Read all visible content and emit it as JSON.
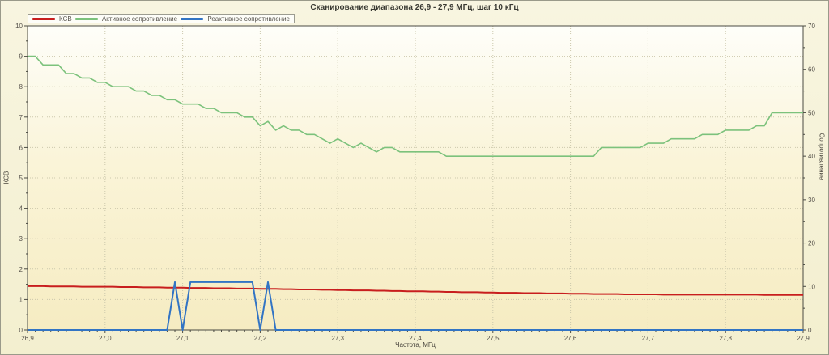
{
  "title": "Сканирование диапазона 26,9 - 27,9 МГц, шаг 10 кГц",
  "axes": {
    "x": {
      "label": "Частота, МГц",
      "min": 26.9,
      "max": 27.9,
      "major_step": 0.1,
      "minor_step": 0.01,
      "tick_labels": [
        "26,9",
        "27,0",
        "27,1",
        "27,2",
        "27,3",
        "27,4",
        "27,5",
        "27,6",
        "27,7",
        "27,8",
        "27,9"
      ]
    },
    "y_left": {
      "label": "КСВ",
      "min": 0,
      "max": 10,
      "major_step": 1,
      "minor_step": 0.5,
      "tick_labels": [
        "0",
        "1",
        "2",
        "3",
        "4",
        "5",
        "6",
        "7",
        "8",
        "9",
        "10"
      ]
    },
    "y_right": {
      "label": "Сопротивление",
      "min": 0,
      "max": 70,
      "major_step": 10,
      "minor_step": 5,
      "tick_labels": [
        "0",
        "10",
        "20",
        "30",
        "40",
        "50",
        "60",
        "70"
      ]
    }
  },
  "colors": {
    "figure_bg": "#f4f0d2",
    "plot_bg_top": "#fefef9",
    "plot_bg_bottom": "#f6ecc2",
    "grid": "#ccc8ac",
    "axis": "#4a4a42",
    "tick_text": "#55514a",
    "swr": "#c81e1e",
    "active": "#7cc27c",
    "reactive": "#3274c4"
  },
  "chart_data": {
    "type": "line",
    "title": "Сканирование диапазона 26,9 - 27,9 МГц, шаг 10 кГц",
    "xlabel": "Частота, МГц",
    "ylabel_left": "КСВ",
    "ylabel_right": "Сопротивление",
    "x_start": 26.9,
    "x_step": 0.01,
    "x_range": [
      26.9,
      27.9
    ],
    "y_left_range": [
      0,
      10
    ],
    "y_right_range": [
      0,
      70
    ],
    "grid": "dotted",
    "legend_position": "top-left",
    "series": [
      {
        "name": "КСВ",
        "axis": "left",
        "color": "#c81e1e",
        "values": [
          1.44,
          1.44,
          1.44,
          1.43,
          1.43,
          1.43,
          1.43,
          1.42,
          1.42,
          1.42,
          1.42,
          1.42,
          1.41,
          1.41,
          1.41,
          1.4,
          1.4,
          1.4,
          1.39,
          1.39,
          1.39,
          1.38,
          1.38,
          1.38,
          1.37,
          1.37,
          1.37,
          1.36,
          1.36,
          1.36,
          1.35,
          1.35,
          1.35,
          1.34,
          1.34,
          1.33,
          1.33,
          1.33,
          1.32,
          1.32,
          1.31,
          1.31,
          1.3,
          1.3,
          1.3,
          1.29,
          1.29,
          1.28,
          1.28,
          1.27,
          1.27,
          1.27,
          1.26,
          1.26,
          1.25,
          1.25,
          1.24,
          1.24,
          1.24,
          1.23,
          1.23,
          1.22,
          1.22,
          1.22,
          1.21,
          1.21,
          1.21,
          1.2,
          1.2,
          1.2,
          1.19,
          1.19,
          1.19,
          1.18,
          1.18,
          1.18,
          1.18,
          1.17,
          1.17,
          1.17,
          1.17,
          1.17,
          1.16,
          1.16,
          1.16,
          1.16,
          1.16,
          1.16,
          1.16,
          1.16,
          1.16,
          1.16,
          1.16,
          1.16,
          1.16,
          1.15,
          1.15,
          1.15,
          1.15,
          1.15,
          1.15
        ]
      },
      {
        "name": "Активное сопротивление",
        "axis": "right",
        "color": "#7cc27c",
        "values": [
          63,
          63,
          61,
          61,
          61,
          59,
          59,
          58,
          58,
          57,
          57,
          56,
          56,
          56,
          55,
          55,
          54,
          54,
          53,
          53,
          52,
          52,
          52,
          51,
          51,
          50,
          50,
          50,
          49,
          49,
          47,
          48,
          46,
          47,
          46,
          46,
          45,
          45,
          44,
          43,
          44,
          43,
          42,
          43,
          42,
          41,
          42,
          42,
          41,
          41,
          41,
          41,
          41,
          41,
          40,
          40,
          40,
          40,
          40,
          40,
          40,
          40,
          40,
          40,
          40,
          40,
          40,
          40,
          40,
          40,
          40,
          40,
          40,
          40,
          42,
          42,
          42,
          42,
          42,
          42,
          43,
          43,
          43,
          44,
          44,
          44,
          44,
          45,
          45,
          45,
          46,
          46,
          46,
          46,
          47,
          47,
          50,
          50,
          50,
          50,
          50
        ]
      },
      {
        "name": "Реактивное сопротивление",
        "axis": "right",
        "color": "#3274c4",
        "values": [
          0,
          0,
          0,
          0,
          0,
          0,
          0,
          0,
          0,
          0,
          0,
          0,
          0,
          0,
          0,
          0,
          0,
          0,
          0,
          11,
          0,
          11,
          11,
          11,
          11,
          11,
          11,
          11,
          11,
          11,
          0,
          11,
          0,
          0,
          0,
          0,
          0,
          0,
          0,
          0,
          0,
          0,
          0,
          0,
          0,
          0,
          0,
          0,
          0,
          0,
          0,
          0,
          0,
          0,
          0,
          0,
          0,
          0,
          0,
          0,
          0,
          0,
          0,
          0,
          0,
          0,
          0,
          0,
          0,
          0,
          0,
          0,
          0,
          0,
          0,
          0,
          0,
          0,
          0,
          0,
          0,
          0,
          0,
          0,
          0,
          0,
          0,
          0,
          0,
          0,
          0,
          0,
          0,
          0,
          0,
          0,
          0,
          0,
          0,
          0,
          0
        ]
      }
    ]
  }
}
